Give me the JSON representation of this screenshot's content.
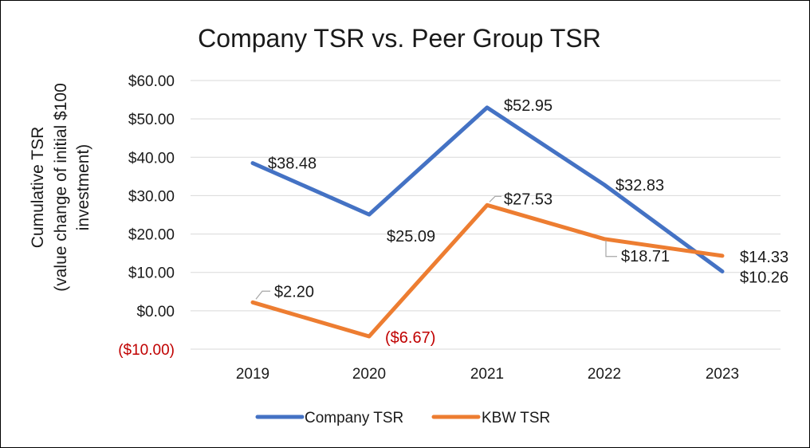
{
  "chart_data": {
    "type": "line",
    "title": "Company TSR vs. Peer Group TSR",
    "ylabel_lines": [
      "Cumulative TSR",
      "(value change of initial $100",
      "investment)"
    ],
    "xlabel": "",
    "categories": [
      "2019",
      "2020",
      "2021",
      "2022",
      "2023"
    ],
    "ylim": [
      -10,
      60
    ],
    "yticks": [
      60,
      50,
      40,
      30,
      20,
      10,
      0,
      -10
    ],
    "ytick_labels": [
      "$60.00",
      "$50.00",
      "$40.00",
      "$30.00",
      "$20.00",
      "$10.00",
      "$0.00",
      "($10.00)"
    ],
    "grid": true,
    "legend_position": "bottom",
    "series": [
      {
        "name": "Company TSR",
        "color": "#4472c4",
        "values": [
          38.48,
          25.09,
          52.95,
          32.83,
          10.26
        ],
        "labels": [
          "$38.48",
          "$25.09",
          "$52.95",
          "$32.83",
          "$10.26"
        ]
      },
      {
        "name": "KBW TSR",
        "color": "#ed7d31",
        "values": [
          2.2,
          -6.67,
          27.53,
          18.71,
          14.33
        ],
        "labels": [
          "$2.20",
          "($6.67)",
          "$27.53",
          "$18.71",
          "$14.33"
        ]
      }
    ],
    "negative_color": "#c00000"
  }
}
